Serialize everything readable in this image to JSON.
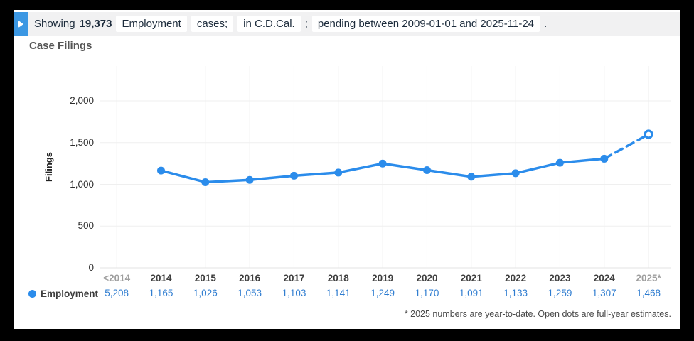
{
  "query_bar": {
    "prefix": "Showing",
    "count": "19,373",
    "segments": [
      {
        "text": "Employment",
        "chip": true
      },
      {
        "text": "cases;",
        "chip": true
      },
      {
        "text": "in C.D.Cal.",
        "chip": true
      },
      {
        "text": ";",
        "chip": false
      },
      {
        "text": "pending between 2009-01-01 and 2025-11-24",
        "chip": true
      },
      {
        "text": ".",
        "chip": false
      }
    ]
  },
  "chart_data": {
    "type": "line",
    "title": "Case Filings",
    "ylabel": "Filings",
    "xlabel": "",
    "ylim": [
      0,
      2000
    ],
    "yticks": [
      0,
      500,
      1000,
      1500,
      2000
    ],
    "grid": true,
    "legend_position": "bottom-left",
    "categories": [
      "<2014",
      "2014",
      "2015",
      "2016",
      "2017",
      "2018",
      "2019",
      "2020",
      "2021",
      "2022",
      "2023",
      "2024",
      "2025*"
    ],
    "muted_categories": [
      "<2014",
      "2025*"
    ],
    "series": [
      {
        "name": "Employment",
        "color": "#2b8ceb",
        "values": [
          5208,
          1165,
          1026,
          1053,
          1103,
          1141,
          1249,
          1170,
          1091,
          1133,
          1259,
          1307,
          1468
        ]
      }
    ],
    "estimate": {
      "category": "2025*",
      "value": 1600,
      "style": "dashed-open-dot"
    },
    "note": "* 2025 numbers are year-to-date. Open dots are full-year estimates."
  },
  "legend": {
    "label": "Employment"
  },
  "colors": {
    "accent_blue": "#3b97e3",
    "line_blue": "#2b8ceb",
    "value_text_blue": "#2e7cd0",
    "bar_background": "#f1f1f2",
    "grid_line": "#efefef"
  }
}
